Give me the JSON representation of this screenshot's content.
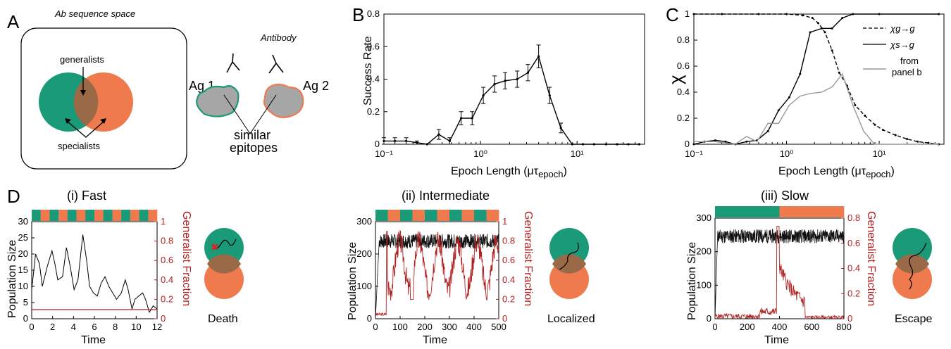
{
  "panel_labels": {
    "a": "A",
    "b": "B",
    "c": "C",
    "d": "D"
  },
  "panel_a": {
    "title": "Ab sequence space",
    "generalists": "generalists",
    "specialists": "specialists",
    "antibody": "Antibody",
    "ag1": "Ag 1",
    "ag2": "Ag 2",
    "similar": "similar",
    "epitopes": "epitopes",
    "colors": {
      "green": "#1a9a78",
      "orange": "#ee7a4e"
    }
  },
  "panel_b_axes": {
    "ylabel": "Success Rate",
    "xlabel": "Epoch Length (μτ",
    "xlabel_sub": "epoch",
    "xlabel_end": ")",
    "yticks": [
      "0",
      "0.2",
      "0.4",
      "0.6",
      "0.8"
    ],
    "xticks": [
      "10⁻¹",
      "10⁰",
      "10¹"
    ]
  },
  "panel_c_axes": {
    "ylabel": "χ",
    "xlabel": "Epoch Length (μτ",
    "xlabel_sub": "epoch",
    "xlabel_end": ")",
    "yticks": [
      "0",
      "0.2",
      "0.4",
      "0.6",
      "0.8",
      "1"
    ],
    "xticks": [
      "10⁻¹",
      "10⁰",
      "10¹"
    ],
    "legend": [
      "χg→g",
      "χs→g",
      "from",
      "panel b"
    ]
  },
  "chart_data": [
    {
      "type": "line",
      "panel": "B",
      "xscale": "log",
      "xlim": [
        0.1,
        50
      ],
      "ylim": [
        0,
        0.8
      ],
      "ylabel": "Success Rate",
      "xlabel": "Epoch Length (μτepoch)",
      "x": [
        0.1,
        0.13,
        0.17,
        0.22,
        0.28,
        0.37,
        0.48,
        0.63,
        0.82,
        1.07,
        1.4,
        1.8,
        2.4,
        3.1,
        4.0,
        5.2,
        6.8,
        8.9,
        11.5,
        15,
        20,
        26,
        34,
        44
      ],
      "y": [
        0.02,
        0.02,
        0.02,
        0.01,
        0.0,
        0.06,
        0.02,
        0.16,
        0.16,
        0.3,
        0.37,
        0.39,
        0.4,
        0.44,
        0.54,
        0.3,
        0.1,
        0.0,
        0.0,
        0.0,
        0.0,
        0.0,
        0.0,
        0.0
      ],
      "err": [
        0.02,
        0.02,
        0.02,
        0.01,
        0.0,
        0.03,
        0.02,
        0.04,
        0.04,
        0.05,
        0.05,
        0.05,
        0.05,
        0.05,
        0.07,
        0.05,
        0.03,
        0.0,
        0.0,
        0.0,
        0.0,
        0.0,
        0.0,
        0.0
      ]
    },
    {
      "type": "line",
      "panel": "C",
      "xscale": "log",
      "xlim": [
        0.1,
        50
      ],
      "ylim": [
        0,
        1
      ],
      "series": [
        {
          "name": "χg→g",
          "style": "dashed",
          "x": [
            0.1,
            0.2,
            0.5,
            1.0,
            1.5,
            1.9,
            2.2,
            2.6,
            3.1,
            3.7,
            4.5,
            5.5,
            7,
            9,
            11,
            15,
            20,
            26,
            34,
            44
          ],
          "y": [
            1,
            1,
            1,
            1,
            0.99,
            0.97,
            0.93,
            0.86,
            0.72,
            0.55,
            0.45,
            0.3,
            0.22,
            0.15,
            0.11,
            0.07,
            0.04,
            0.02,
            0.01,
            0.0
          ]
        },
        {
          "name": "χs→g",
          "style": "solid",
          "x": [
            0.1,
            0.13,
            0.17,
            0.22,
            0.28,
            0.37,
            0.48,
            0.63,
            0.82,
            1.07,
            1.4,
            1.8,
            2.4,
            3.1,
            4.0,
            5.2,
            10,
            44
          ],
          "y": [
            0.0,
            0.02,
            0.03,
            0.02,
            0.0,
            0.02,
            0.03,
            0.1,
            0.26,
            0.36,
            0.54,
            0.86,
            0.89,
            0.89,
            0.97,
            1.0,
            1.0,
            1.0
          ]
        },
        {
          "name": "from panel b",
          "style": "gray",
          "x": [
            0.1,
            0.13,
            0.17,
            0.22,
            0.28,
            0.37,
            0.48,
            0.63,
            0.82,
            1.07,
            1.4,
            1.8,
            2.4,
            3.1,
            4.0,
            5.2,
            6.8,
            8.9,
            11.5,
            15,
            20,
            44
          ],
          "y": [
            0.02,
            0.02,
            0.02,
            0.01,
            0.0,
            0.06,
            0.02,
            0.16,
            0.16,
            0.3,
            0.37,
            0.39,
            0.4,
            0.44,
            0.54,
            0.3,
            0.1,
            0.0,
            0.0,
            0.0,
            0.0,
            0.0
          ]
        }
      ]
    }
  ],
  "panel_d": {
    "fast": {
      "title": "(i) Fast",
      "outcome": "Death",
      "xlabel": "Time",
      "ylabel": "Population Size",
      "ylabel_r": "Generalist Fraction",
      "xticks": [
        "0",
        "2",
        "4",
        "6",
        "8",
        "10",
        "12"
      ],
      "yticks": [
        "0",
        "5",
        "10",
        "15",
        "20",
        "25",
        "30"
      ],
      "yticks_r": [
        "0",
        "0.2",
        "0.4",
        "0.6",
        "0.8",
        "1"
      ],
      "xlim": [
        0,
        13
      ],
      "ylim": [
        0,
        30
      ],
      "epochs": 14,
      "population": [
        [
          0,
          9
        ],
        [
          0.4,
          20
        ],
        [
          0.8,
          17
        ],
        [
          1.1,
          10
        ],
        [
          1.6,
          16
        ],
        [
          2.1,
          21
        ],
        [
          2.4,
          17
        ],
        [
          2.7,
          12
        ],
        [
          3.2,
          13
        ],
        [
          3.6,
          22
        ],
        [
          4.0,
          16
        ],
        [
          4.4,
          9
        ],
        [
          4.8,
          12
        ],
        [
          5.3,
          26
        ],
        [
          5.7,
          18
        ],
        [
          6.0,
          10
        ],
        [
          6.4,
          8
        ],
        [
          6.8,
          7
        ],
        [
          7.2,
          11
        ],
        [
          7.6,
          13
        ],
        [
          8.0,
          10
        ],
        [
          8.4,
          8
        ],
        [
          8.8,
          6
        ],
        [
          9.3,
          8
        ],
        [
          9.7,
          12
        ],
        [
          10.0,
          9
        ],
        [
          10.4,
          3
        ],
        [
          10.7,
          6
        ],
        [
          11.1,
          7
        ],
        [
          11.5,
          8
        ],
        [
          11.8,
          6
        ],
        [
          12.2,
          2
        ],
        [
          12.6,
          4
        ],
        [
          13,
          3
        ]
      ]
    },
    "intermediate": {
      "title": "(ii) Intermediate",
      "outcome": "Localized",
      "xlabel": "Time",
      "ylabel": "Population Size",
      "ylabel_r": "Generalist Fraction",
      "xticks": [
        "0",
        "100",
        "200",
        "300",
        "400",
        "500"
      ],
      "yticks": [
        "0",
        "100",
        "200",
        "300"
      ],
      "yticks_r": [
        "0",
        "0.2",
        "0.4",
        "0.6",
        "0.8",
        "1"
      ],
      "xlim": [
        0,
        500
      ],
      "ylim": [
        0,
        300
      ],
      "epochs": 10
    },
    "slow": {
      "title": "(iii) Slow",
      "outcome": "Escape",
      "xlabel": "Time",
      "ylabel": "Population Size",
      "ylabel_r": "Generalist Fraction",
      "xticks": [
        "0",
        "200",
        "400",
        "600",
        "800"
      ],
      "yticks": [
        "0",
        "100",
        "200",
        "300"
      ],
      "yticks_r": [
        "0",
        "0.2",
        "0.4",
        "0.6",
        "0.8"
      ],
      "xlim": [
        0,
        800
      ],
      "ylim": [
        0,
        300
      ],
      "epochs": 2
    }
  }
}
